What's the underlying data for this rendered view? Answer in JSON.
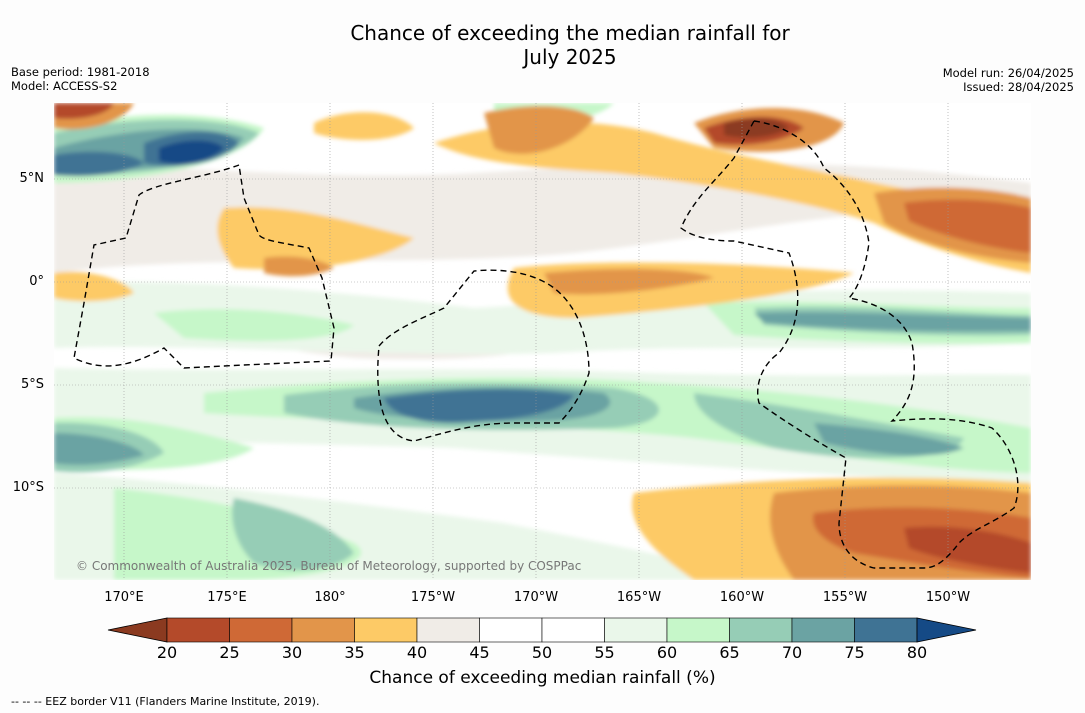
{
  "title": {
    "line1": "Chance of exceeding the median rainfall for",
    "line2": "July 2025"
  },
  "meta": {
    "base_period": "Base period: 1981-2018",
    "model": "Model: ACCESS-S2",
    "model_run": "Model run: 26/04/2025",
    "issued": "Issued: 28/04/2025"
  },
  "map": {
    "lat_labels": [
      "5°N",
      "0°",
      "5°S",
      "10°S"
    ],
    "lon_labels": [
      "170°E",
      "175°E",
      "180°",
      "175°W",
      "170°W",
      "165°W",
      "160°W",
      "155°W",
      "150°W"
    ],
    "copyright": "© Commonwealth of Australia 2025, Bureau of Meteorology, supported by COSPPac",
    "background_color": "#ffffff"
  },
  "colorbar": {
    "ticks": [
      "20",
      "25",
      "30",
      "35",
      "40",
      "45",
      "50",
      "55",
      "60",
      "65",
      "70",
      "75",
      "80"
    ],
    "colors": [
      "#8b3a20",
      "#b44a2a",
      "#cf6936",
      "#e2954a",
      "#fdca66",
      "#f0ece7",
      "#ffffff",
      "#ffffff",
      "#eaf7ea",
      "#c6f7c9",
      "#96cdb6",
      "#6ba3a3",
      "#3f7394",
      "#154a86"
    ],
    "label": "Chance of exceeding median rainfall (%)"
  },
  "footnote": "--  --  -- EEZ border V11 (Flanders Marine Institute, 2019)."
}
